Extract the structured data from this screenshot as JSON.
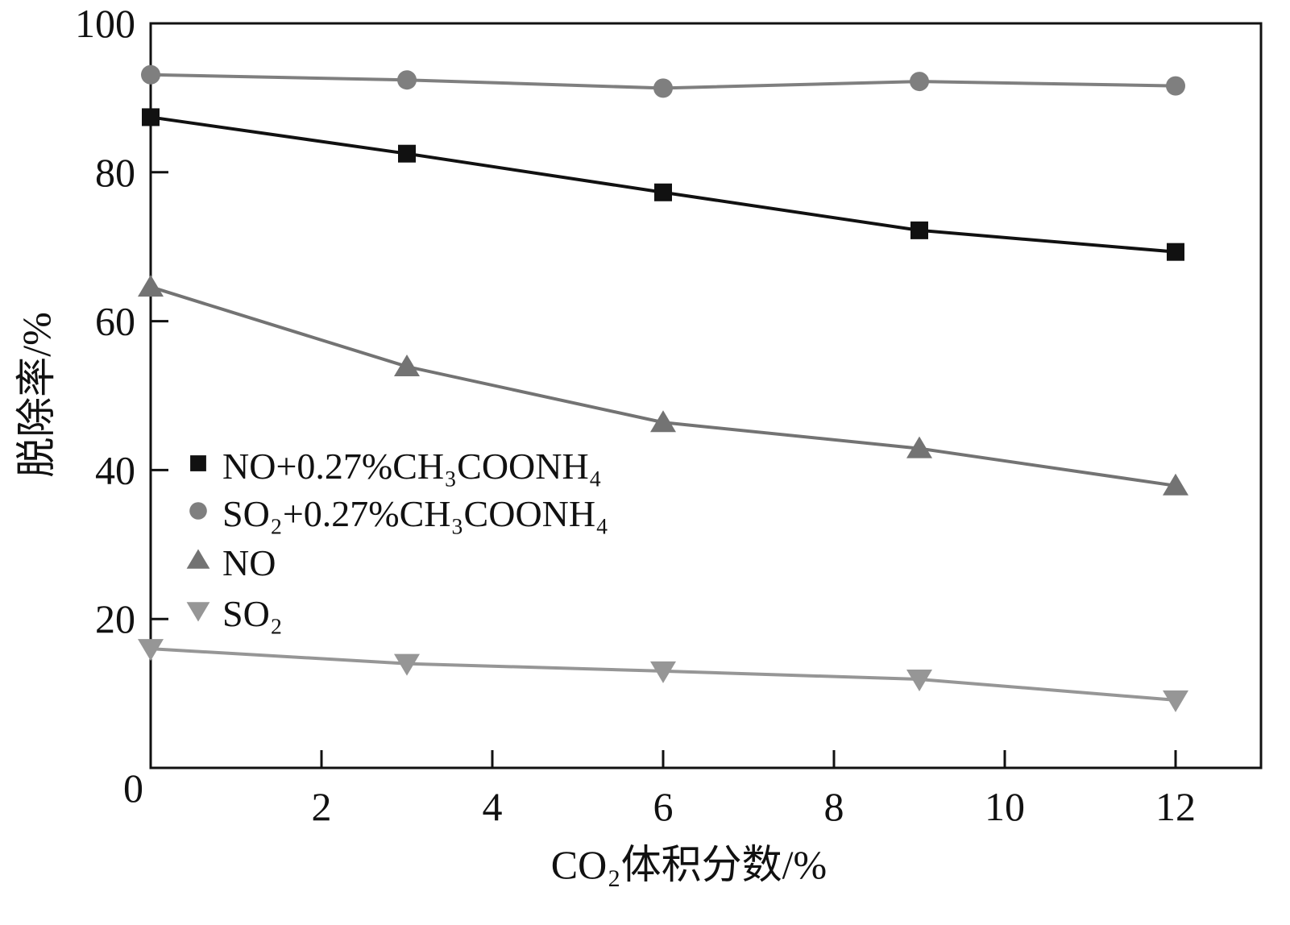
{
  "chart_data": {
    "type": "line",
    "title": "",
    "xlabel": "CO₂体积分数/%",
    "ylabel": "脱除率/%",
    "xlim": [
      0,
      13
    ],
    "ylim": [
      0,
      100
    ],
    "xticks": [
      2,
      4,
      6,
      8,
      10,
      12
    ],
    "yticks": [
      0,
      20,
      40,
      60,
      80,
      100
    ],
    "grid": false,
    "legend_position": "center-left",
    "x": [
      0,
      3,
      6,
      9,
      12
    ],
    "series": [
      {
        "name": "NO+0.27%CH₃COONH₄",
        "marker": "square",
        "color": "#111111",
        "values": [
          87.4,
          82.5,
          77.3,
          72.2,
          69.3
        ]
      },
      {
        "name": "SO₂+0.27%CH₃COONH₄",
        "marker": "circle",
        "color": "#7f7f7f",
        "values": [
          93.1,
          92.4,
          91.3,
          92.2,
          91.6
        ]
      },
      {
        "name": "NO",
        "marker": "triangle-up",
        "color": "#737373",
        "values": [
          64.6,
          53.9,
          46.4,
          42.9,
          37.9
        ]
      },
      {
        "name": "SO₂",
        "marker": "triangle-down",
        "color": "#969696",
        "values": [
          16.0,
          14.0,
          13.0,
          11.9,
          9.1
        ]
      }
    ]
  }
}
